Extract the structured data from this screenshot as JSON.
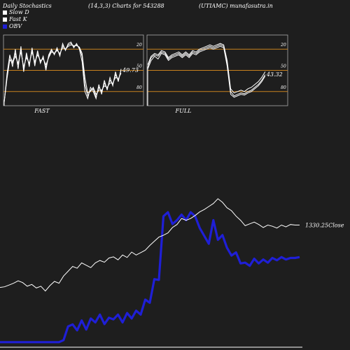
{
  "header": {
    "title": "Daily Stochastics",
    "params": "(14,3,3) Charts for 543288",
    "source": "(UTIAMC) munafasutra.in"
  },
  "legend": {
    "items": [
      {
        "label": "Slow  D",
        "color": "#ffffff"
      },
      {
        "label": "Fast K",
        "color": "#ffffff"
      },
      {
        "label": "OBV",
        "color": "#1f1fd6"
      }
    ]
  },
  "colors": {
    "background": "#1e1e1e",
    "level_line": "#c8821e",
    "stoch_line": "#ffffff",
    "obv_line": "#1f1fd6",
    "price_line": "#ffffff"
  },
  "chart_data": [
    {
      "type": "line",
      "title": "FAST",
      "ylim": [
        0,
        100
      ],
      "levels": [
        20,
        50,
        80
      ],
      "tick_labels": [
        "80",
        "50",
        "20"
      ],
      "last_value_label": "49.73",
      "series": [
        {
          "values": [
            5,
            40,
            70,
            62,
            74,
            58,
            80,
            52,
            72,
            58,
            80,
            60,
            76,
            62,
            68,
            54,
            70,
            78,
            74,
            80,
            72,
            85,
            80,
            86,
            88,
            84,
            86,
            82,
            70,
            30,
            14,
            22,
            24,
            12,
            26,
            20,
            32,
            24,
            36,
            30,
            44,
            36,
            50
          ]
        },
        {
          "values": [
            5,
            45,
            72,
            55,
            80,
            52,
            84,
            48,
            75,
            55,
            82,
            56,
            78,
            60,
            70,
            50,
            72,
            80,
            72,
            82,
            70,
            88,
            78,
            88,
            90,
            82,
            88,
            80,
            62,
            20,
            10,
            26,
            20,
            10,
            30,
            16,
            36,
            22,
            40,
            28,
            48,
            34,
            52
          ]
        },
        {
          "values": [
            5,
            38,
            65,
            60,
            70,
            60,
            76,
            55,
            68,
            60,
            76,
            62,
            72,
            64,
            66,
            58,
            68,
            76,
            74,
            78,
            74,
            82,
            80,
            84,
            86,
            85,
            85,
            83,
            74,
            40,
            18,
            20,
            26,
            16,
            22,
            22,
            28,
            26,
            32,
            32,
            40,
            38,
            46
          ]
        }
      ]
    },
    {
      "type": "line",
      "title": "FULL",
      "ylim": [
        0,
        100
      ],
      "levels": [
        20,
        50,
        80
      ],
      "tick_labels": [
        "80",
        "50",
        "20"
      ],
      "last_value_label": "43.32",
      "series": [
        {
          "values": [
            55,
            68,
            72,
            70,
            76,
            74,
            66,
            70,
            72,
            74,
            70,
            74,
            70,
            76,
            74,
            78,
            80,
            82,
            84,
            82,
            84,
            86,
            84,
            60,
            20,
            14,
            16,
            18,
            17,
            20,
            22,
            26,
            30,
            36,
            44
          ]
        },
        {
          "values": [
            52,
            64,
            70,
            66,
            74,
            72,
            64,
            68,
            70,
            72,
            68,
            72,
            68,
            74,
            72,
            76,
            78,
            80,
            82,
            80,
            82,
            84,
            82,
            56,
            16,
            12,
            14,
            16,
            15,
            18,
            20,
            24,
            28,
            34,
            42
          ]
        },
        {
          "values": [
            58,
            70,
            74,
            72,
            78,
            76,
            68,
            72,
            74,
            76,
            72,
            76,
            72,
            78,
            76,
            80,
            82,
            84,
            86,
            84,
            86,
            88,
            86,
            64,
            24,
            18,
            20,
            22,
            20,
            24,
            26,
            30,
            34,
            40,
            48
          ]
        }
      ]
    },
    {
      "type": "line",
      "last_value_label": "1330.25",
      "last_value_suffix": "Close",
      "series": [
        {
          "values": [
            1122,
            1124,
            1130,
            1136,
            1144,
            1138,
            1126,
            1132,
            1120,
            1126,
            1110,
            1128,
            1142,
            1136,
            1160,
            1176,
            1192,
            1186,
            1204,
            1196,
            1188,
            1204,
            1212,
            1206,
            1220,
            1224,
            1214,
            1230,
            1222,
            1240,
            1230,
            1238,
            1246,
            1262,
            1276,
            1290,
            1296,
            1304,
            1322,
            1332,
            1352,
            1346,
            1352,
            1362,
            1374,
            1382,
            1392,
            1402,
            1418,
            1406,
            1388,
            1378,
            1360,
            1346,
            1328,
            1334,
            1340,
            1332,
            1322,
            1330,
            1326,
            1320,
            1330,
            1324,
            1332,
            1330,
            1330
          ]
        },
        {
          "values": [
            -180,
            -180,
            -180,
            -180,
            -180,
            -180,
            -180,
            -180,
            -180,
            -180,
            -180,
            -180,
            -180,
            -180,
            -175,
            -140,
            -135,
            -150,
            -125,
            -148,
            -120,
            -130,
            -110,
            -134,
            -118,
            -122,
            -110,
            -130,
            -106,
            -120,
            -100,
            -110,
            -72,
            -80,
            -20,
            -22,
            140,
            150,
            120,
            130,
            144,
            130,
            150,
            140,
            110,
            90,
            70,
            130,
            80,
            92,
            60,
            40,
            48,
            20,
            22,
            14,
            32,
            20,
            30,
            22,
            34,
            28,
            36,
            30,
            34,
            34,
            36
          ]
        }
      ]
    }
  ],
  "labels": {
    "fast": "FAST",
    "full": "FULL"
  }
}
